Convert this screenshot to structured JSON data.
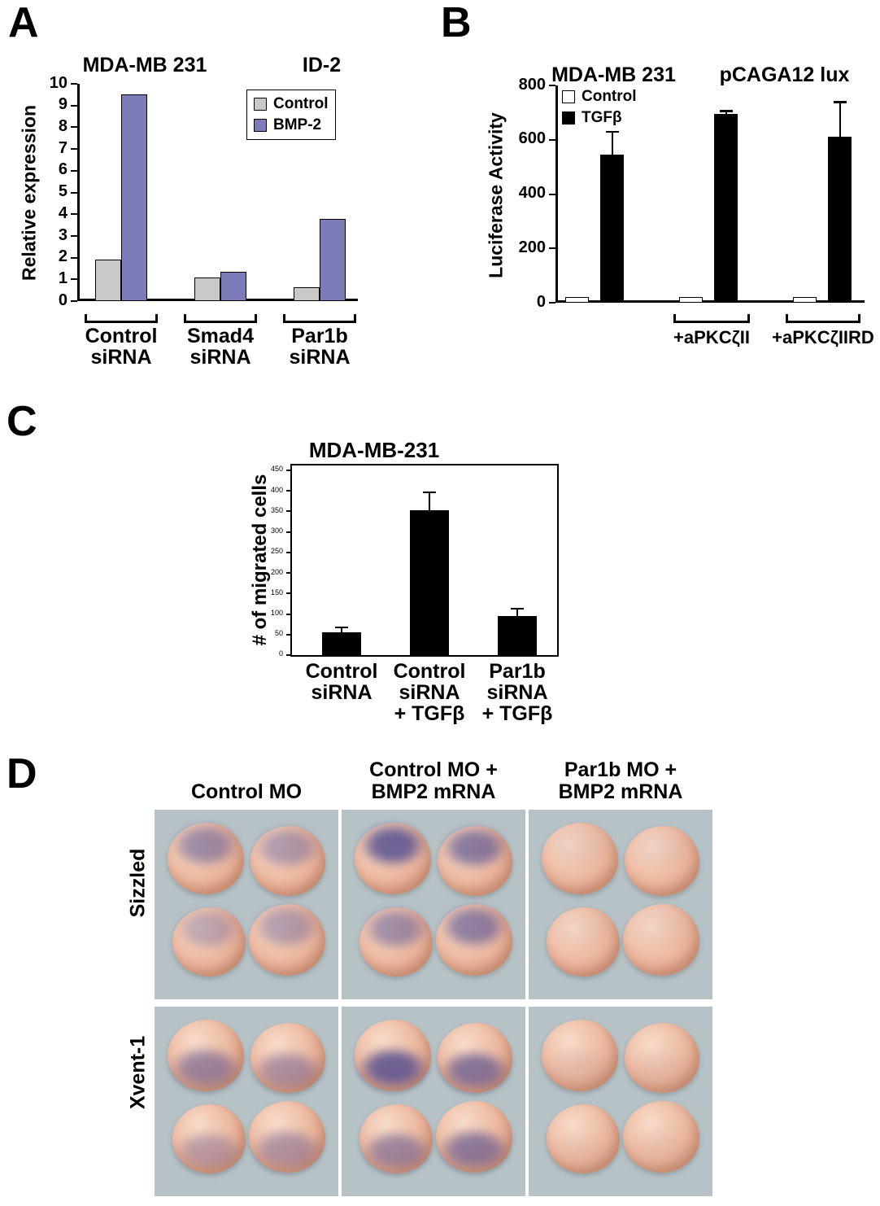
{
  "figure": {
    "panel_a": {
      "label": "A",
      "group_labels": [
        "Control\nsiRNA",
        "Smad4\nsiRNA",
        "Par1b\nsiRNA"
      ]
    },
    "panel_b": {
      "label": "B",
      "bracket_labels": [
        "+aPKCζII",
        "+aPKCζIIRD"
      ]
    },
    "panel_c": {
      "label": "C",
      "group_labels": [
        "Control\nsiRNA",
        "Control\nsiRNA\n+ TGFβ",
        "Par1b\nsiRNA\n+ TGFβ"
      ]
    },
    "panel_d": {
      "label": "D",
      "column_headers": [
        "Control MO",
        "Control MO +\nBMP2 mRNA",
        "Par1b MO +\nBMP2 mRNA"
      ],
      "row_labels": [
        "Sizzled",
        "Xvent-1"
      ],
      "colors": {
        "background": "#b7c2c6",
        "embryo": "#ecb69e",
        "stain": "#58508e"
      },
      "panels": [
        {
          "row": "Sizzled",
          "column": "Control MO",
          "stain_level": "medium",
          "stain_pos": "top"
        },
        {
          "row": "Sizzled",
          "column": "Control MO + BMP2 mRNA",
          "stain_level": "strong",
          "stain_pos": "top"
        },
        {
          "row": "Sizzled",
          "column": "Par1b MO + BMP2 mRNA",
          "stain_level": "none",
          "stain_pos": "top"
        },
        {
          "row": "Xvent-1",
          "column": "Control MO",
          "stain_level": "medium",
          "stain_pos": "bottom"
        },
        {
          "row": "Xvent-1",
          "column": "Control MO + BMP2 mRNA",
          "stain_level": "strong",
          "stain_pos": "bottom"
        },
        {
          "row": "Xvent-1",
          "column": "Par1b MO + BMP2 mRNA",
          "stain_level": "none",
          "stain_pos": "bottom"
        }
      ]
    }
  },
  "chart_data": [
    {
      "type": "bar",
      "panel": "A",
      "title": "MDA-MB 231",
      "subtitle": "ID-2",
      "ylabel": "Relative expression",
      "ylim": [
        0,
        10
      ],
      "yticks": [
        0,
        1,
        2,
        3,
        4,
        5,
        6,
        7,
        8,
        9,
        10
      ],
      "categories": [
        "Control siRNA",
        "Smad4 siRNA",
        "Par1b siRNA"
      ],
      "series": [
        {
          "name": "Control",
          "color": "#c9c9c9",
          "values": [
            1.9,
            1.1,
            0.65
          ]
        },
        {
          "name": "BMP-2",
          "color": "#7d7cb8",
          "values": [
            9.5,
            1.35,
            3.8
          ]
        }
      ],
      "legend_position": "top-right",
      "grid": false
    },
    {
      "type": "bar",
      "panel": "B",
      "title": "MDA-MB 231",
      "subtitle": "pCAGA12 lux",
      "ylabel": "Luciferase Activity",
      "ylim": [
        0,
        800
      ],
      "yticks": [
        0,
        200,
        400,
        600,
        800
      ],
      "categories": [
        "",
        "+aPKCζII",
        "+aPKCζIIRD"
      ],
      "series": [
        {
          "name": "Control",
          "color": "#ffffff",
          "values": [
            8,
            8,
            8
          ]
        },
        {
          "name": "TGFβ",
          "color": "#000000",
          "values": [
            545,
            695,
            610
          ],
          "errors": [
            85,
            12,
            130
          ]
        }
      ],
      "legend_position": "top-left",
      "grid": false
    },
    {
      "type": "bar",
      "panel": "C",
      "title": "MDA-MB-231",
      "ylabel": "# of migrated cells",
      "ylim": [
        0,
        450
      ],
      "yticks": [
        0,
        50,
        100,
        150,
        200,
        250,
        300,
        350,
        400,
        450
      ],
      "categories": [
        "Control siRNA",
        "Control siRNA + TGFβ",
        "Par1b siRNA + TGFβ"
      ],
      "series": [
        {
          "name": "# of migrated cells",
          "color": "#000000",
          "values": [
            55,
            352,
            95
          ],
          "errors": [
            13,
            45,
            18
          ]
        }
      ],
      "legend_position": "none",
      "grid": false
    }
  ]
}
